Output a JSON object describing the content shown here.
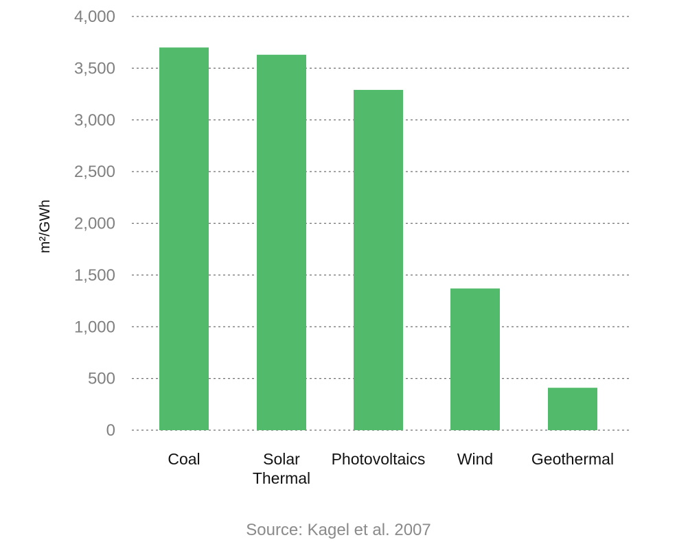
{
  "chart_data": {
    "type": "bar",
    "categories": [
      "Coal",
      "Solar\nThermal",
      "Photovoltaics",
      "Wind",
      "Geothermal"
    ],
    "values": [
      3700,
      3630,
      3290,
      1370,
      410
    ],
    "ylabel": "m²/GWh",
    "xlabel": "",
    "ylim": [
      0,
      4000
    ],
    "yticks": [
      0,
      500,
      1000,
      1500,
      2000,
      2500,
      3000,
      3500,
      4000
    ],
    "ytick_labels": [
      "0",
      "500",
      "1,000",
      "1,500",
      "2,000",
      "2,500",
      "3,000",
      "3,500",
      "4,000"
    ],
    "grid": true,
    "bar_color": "#52bb6b",
    "source": "Source: Kagel et al. 2007"
  }
}
